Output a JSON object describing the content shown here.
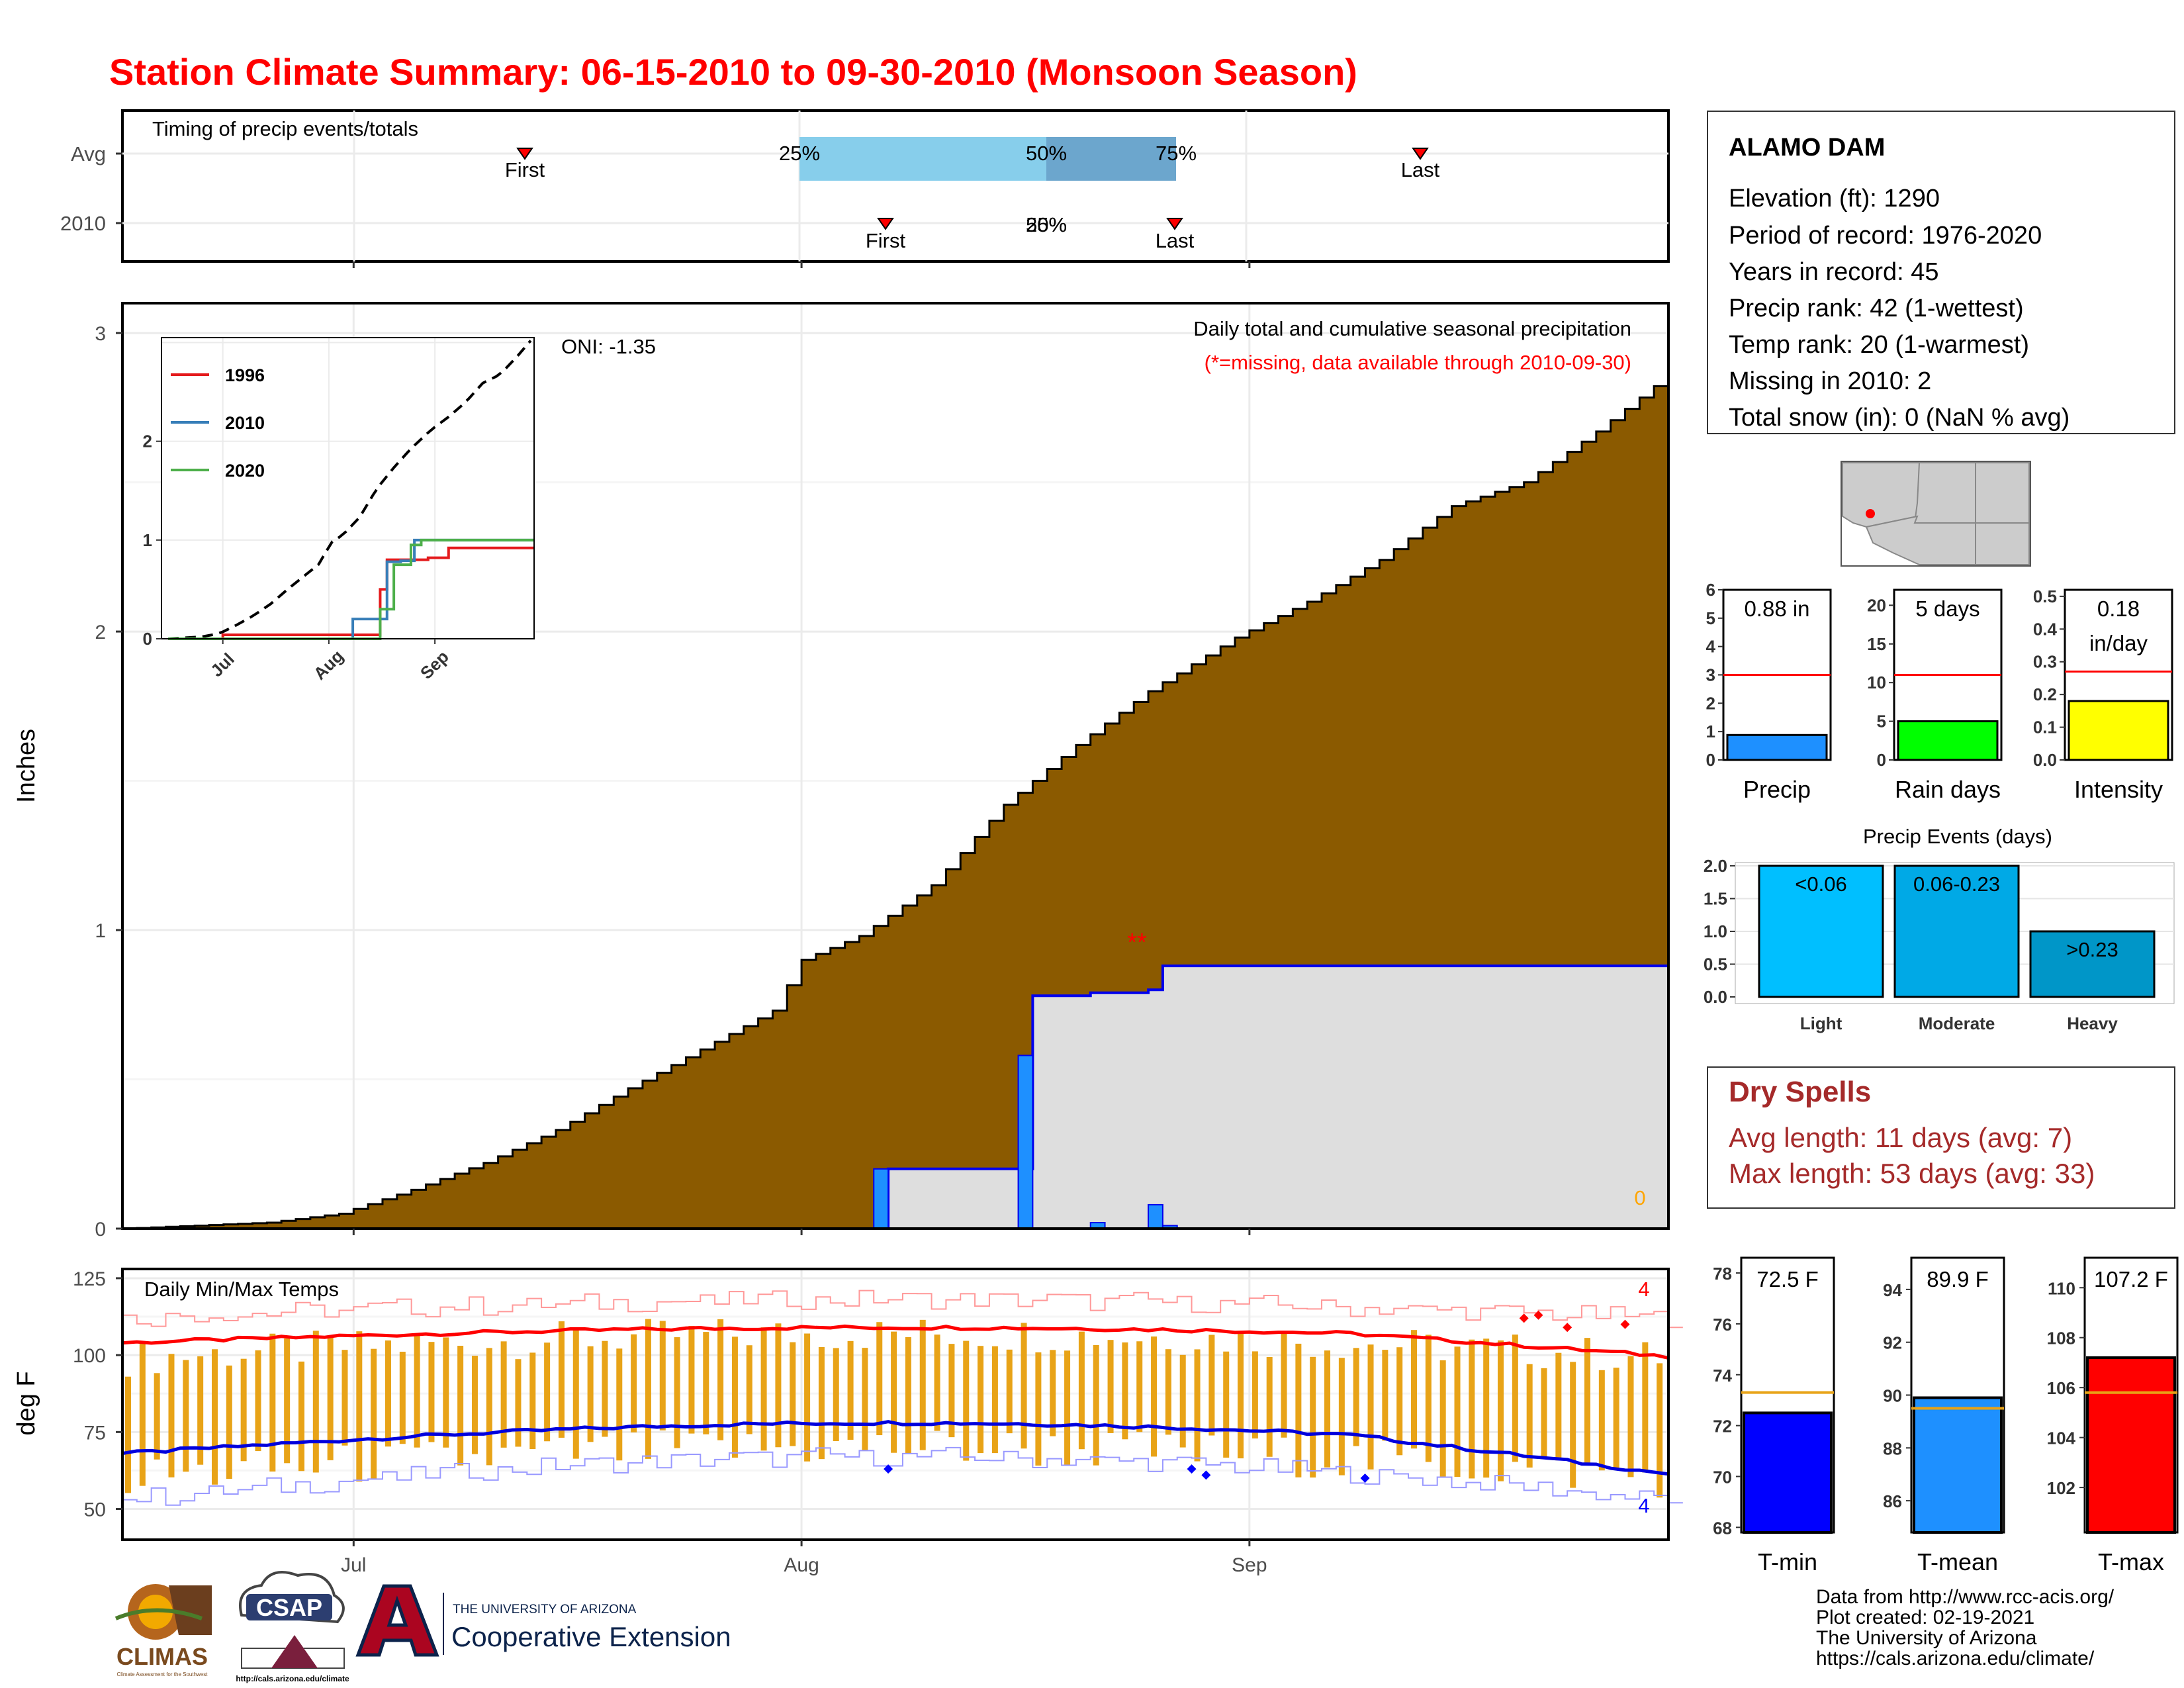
{
  "title": "Station Climate Summary: 06-15-2010 to 09-30-2010 (Monsoon Season)",
  "colors": {
    "title": "#ff0000",
    "cum_avg": "#8b5a00",
    "cum_year": "#dedede",
    "bar": "#1e90ff",
    "dry": "#a52a2a",
    "temp_bar": "#e8a317"
  },
  "timing": {
    "label": "Timing of precip events/totals",
    "rows": [
      "Avg",
      "2010"
    ],
    "avg_first_label": "First",
    "avg_last_label": "Last",
    "yr_first_label": "First",
    "yr_last_label": "Last",
    "p25": "25%",
    "p50": "50%",
    "p75": "75%",
    "yr_overlap": "25%"
  },
  "precip_panel": {
    "ylabel": "Inches",
    "yticks": [
      "0",
      "1",
      "2",
      "3"
    ],
    "oni": "ONI: -1.35",
    "note1": "Daily total and cumulative seasonal precipitation",
    "note2": "(*=missing, data available through 2010-09-30)",
    "missing_marks": "**",
    "zero_label": "0"
  },
  "inset": {
    "yticks": [
      "0",
      "1",
      "2"
    ],
    "xticks": [
      "Jul",
      "Aug",
      "Sep"
    ],
    "legend": [
      {
        "name": "1996",
        "color": "#e41a1c"
      },
      {
        "name": "2010",
        "color": "#377eb8"
      },
      {
        "name": "2020",
        "color": "#4daf4a"
      }
    ]
  },
  "temp_panel": {
    "label": "Daily Min/Max Temps",
    "ylabel": "deg F",
    "yticks": [
      "50",
      "75",
      "100",
      "125"
    ],
    "max_count": "4",
    "min_count": "4"
  },
  "xticks": [
    "Jul",
    "Aug",
    "Sep"
  ],
  "station": {
    "name": "ALAMO DAM",
    "lines": [
      "Elevation (ft): 1290",
      "Period of record: 1976-2020",
      "Years in record: 45",
      "Precip rank: 42 (1-wettest)",
      "Temp rank: 20 (1-warmest)",
      "Missing in 2010: 2",
      "Total snow (in): 0 (NaN % avg)"
    ]
  },
  "mini": [
    {
      "label": "Precip",
      "value": "0.88 in",
      "yticks": [
        "0",
        "1",
        "2",
        "3",
        "4",
        "5",
        "6"
      ],
      "color": "#1e90ff"
    },
    {
      "label": "Rain days",
      "value": "5 days",
      "yticks": [
        "0",
        "5",
        "10",
        "15",
        "20"
      ],
      "color": "#00ff00"
    },
    {
      "label": "Intensity",
      "value": "0.18",
      "value2": "in/day",
      "yticks": [
        "0.0",
        "0.1",
        "0.2",
        "0.3",
        "0.4",
        "0.5"
      ],
      "color": "#ffff00"
    }
  ],
  "events": {
    "title": "Precip Events (days)",
    "yticks": [
      "0.0",
      "0.5",
      "1.0",
      "1.5",
      "2.0"
    ],
    "bars": [
      {
        "cat": "Light",
        "label": "<0.06",
        "color": "#00bfff"
      },
      {
        "cat": "Moderate",
        "label": "0.06-0.23",
        "color": "#00a9e6"
      },
      {
        "cat": "Heavy",
        "label": ">0.23",
        "color": "#0096c8"
      }
    ]
  },
  "dry": {
    "title": "Dry Spells",
    "line1": "Avg length: 11 days (avg: 7)",
    "line2": "Max length: 53 days (avg: 33)"
  },
  "tbars": [
    {
      "label": "T-min",
      "value": "72.5 F",
      "yticks": [
        "68",
        "70",
        "72",
        "74",
        "76",
        "78"
      ],
      "color": "#0000ff"
    },
    {
      "label": "T-mean",
      "value": "89.9 F",
      "yticks": [
        "86",
        "88",
        "90",
        "92",
        "94"
      ],
      "color": "#1e90ff"
    },
    {
      "label": "T-max",
      "value": "107.2 F",
      "yticks": [
        "102",
        "104",
        "106",
        "108",
        "110"
      ],
      "color": "#ff0000"
    }
  ],
  "footer": [
    "Data from http://www.rcc-acis.org/",
    "Plot created: 02-19-2021",
    "The University of Arizona",
    "https://cals.arizona.edu/climate/"
  ],
  "logos": {
    "climas": "CLIMAS",
    "climas_sub": "Climate Assessment for the Southwest",
    "csap": "CSAP",
    "csap_url": "http://cals.arizona.edu/climate",
    "ua_small": "THE UNIVERSITY OF ARIZONA",
    "ua_big": "Cooperative Extension"
  },
  "chart_data": [
    {
      "type": "area",
      "title": "Daily total and cumulative seasonal precipitation",
      "ylabel": "Inches",
      "x_range": [
        "2010-06-15",
        "2010-09-30"
      ],
      "ylim": [
        0,
        3.1
      ],
      "series": [
        {
          "name": "Average cumulative",
          "x": [
            "06-15",
            "06-20",
            "06-25",
            "06-30",
            "07-05",
            "07-10",
            "07-15",
            "07-20",
            "07-25",
            "07-30",
            "08-01",
            "08-05",
            "08-10",
            "08-15",
            "08-20",
            "08-25",
            "08-31",
            "09-05",
            "09-10",
            "09-15",
            "09-20",
            "09-25",
            "09-30"
          ],
          "values": [
            0.0,
            0.01,
            0.02,
            0.05,
            0.13,
            0.22,
            0.33,
            0.47,
            0.6,
            0.73,
            0.9,
            0.98,
            1.15,
            1.42,
            1.62,
            1.8,
            1.98,
            2.1,
            2.24,
            2.42,
            2.5,
            2.67,
            2.86
          ]
        },
        {
          "name": "2010 cumulative",
          "x": [
            "06-15",
            "08-06",
            "08-07",
            "08-16",
            "08-17",
            "08-21",
            "08-25",
            "08-26",
            "09-30"
          ],
          "values": [
            0.0,
            0.0,
            0.2,
            0.2,
            0.78,
            0.79,
            0.8,
            0.88,
            0.88
          ]
        },
        {
          "name": "2010 daily",
          "x": [
            "08-06",
            "08-16",
            "08-21",
            "08-25",
            "08-26"
          ],
          "values": [
            0.2,
            0.58,
            0.02,
            0.08,
            0.01
          ]
        }
      ]
    },
    {
      "type": "line",
      "title": "Daily Min/Max Temps",
      "ylabel": "deg F",
      "ylim": [
        40,
        128
      ],
      "series": [
        {
          "name": "Avg max",
          "values_range": [
            97,
            108
          ]
        },
        {
          "name": "Avg min",
          "values_range": [
            62,
            78
          ]
        }
      ]
    },
    {
      "type": "bar",
      "categories": [
        "Precip",
        "Rain days",
        "Intensity"
      ],
      "values": [
        0.88,
        5,
        0.18
      ],
      "averages": [
        3.0,
        11,
        0.27
      ]
    },
    {
      "type": "bar",
      "title": "Precip Events (days)",
      "categories": [
        "Light",
        "Moderate",
        "Heavy"
      ],
      "values": [
        2,
        2,
        1
      ]
    },
    {
      "type": "bar",
      "categories": [
        "T-min",
        "T-mean",
        "T-max"
      ],
      "values": [
        72.5,
        89.9,
        107.2
      ],
      "averages": [
        73.3,
        89.5,
        105.8
      ]
    }
  ]
}
